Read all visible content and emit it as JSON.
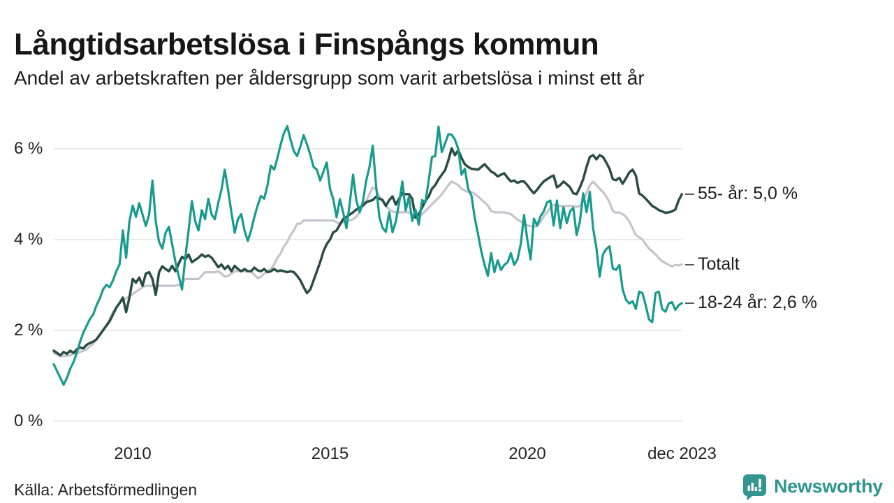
{
  "header": {
    "title": "Långtidsarbetslösa i Finspångs kommun",
    "subtitle": "Andel av arbetskraften per åldersgrupp som varit arbetslösa i minst ett år"
  },
  "chart_data": {
    "type": "line",
    "title": "Långtidsarbetslösa i Finspångs kommun",
    "subtitle": "Andel av arbetskraften per åldersgrupp som varit arbetslösa i minst ett år",
    "x_unit": "month",
    "x_start_year": 2008.0,
    "x_months_step": 1,
    "xlim": [
      2008.0,
      2024.0
    ],
    "ylim": [
      0,
      6.8
    ],
    "grid": true,
    "legend_position": "right-end-labels",
    "y_axis_ticks": [
      {
        "v": 6,
        "label": "6 %"
      },
      {
        "v": 4,
        "label": "4 %"
      },
      {
        "v": 2,
        "label": "2 %"
      },
      {
        "v": 0,
        "label": "0 %"
      }
    ],
    "x_axis_ticks": [
      {
        "t": 2010.0,
        "label": "2010"
      },
      {
        "t": 2015.0,
        "label": "2015"
      },
      {
        "t": 2020.0,
        "label": "2020"
      },
      {
        "t": 2023.92,
        "label": "dec 2023"
      }
    ],
    "series": [
      {
        "name": "55- år",
        "end_label": "55- år: 5,0 %",
        "last_value_label": "5,0 %",
        "color": "#2b4c44",
        "width": 3.5,
        "z": 2,
        "values": [
          1.55,
          1.5,
          1.45,
          1.52,
          1.48,
          1.55,
          1.5,
          1.58,
          1.62,
          1.6,
          1.68,
          1.72,
          1.75,
          1.8,
          1.9,
          2.0,
          2.1,
          2.2,
          2.35,
          2.5,
          2.6,
          2.72,
          2.4,
          2.72,
          3.13,
          3.05,
          3.16,
          2.98,
          3.25,
          3.28,
          3.13,
          2.78,
          3.28,
          3.41,
          3.35,
          3.3,
          3.42,
          3.3,
          3.47,
          3.62,
          3.56,
          3.67,
          3.5,
          3.55,
          3.6,
          3.67,
          3.62,
          3.65,
          3.6,
          3.5,
          3.39,
          3.45,
          3.35,
          3.42,
          3.3,
          3.42,
          3.35,
          3.3,
          3.35,
          3.3,
          3.3,
          3.38,
          3.32,
          3.3,
          3.35,
          3.28,
          3.3,
          3.35,
          3.3,
          3.32,
          3.3,
          3.28,
          3.3,
          3.28,
          3.2,
          3.1,
          2.95,
          2.82,
          2.9,
          3.1,
          3.3,
          3.5,
          3.74,
          3.9,
          4.0,
          4.16,
          4.2,
          4.33,
          4.45,
          4.5,
          4.55,
          4.6,
          4.66,
          4.7,
          4.75,
          4.82,
          4.85,
          4.87,
          4.94,
          4.9,
          4.87,
          4.74,
          4.87,
          4.95,
          4.77,
          4.9,
          5.02,
          5.0,
          5.0,
          4.9,
          4.48,
          4.56,
          4.7,
          4.85,
          4.95,
          5.12,
          5.2,
          5.33,
          5.43,
          5.53,
          5.75,
          6.01,
          5.86,
          5.97,
          5.8,
          5.66,
          5.6,
          5.56,
          5.55,
          5.54,
          5.6,
          5.66,
          5.58,
          5.5,
          5.46,
          5.39,
          5.43,
          5.46,
          5.36,
          5.28,
          5.3,
          5.25,
          5.28,
          5.28,
          5.2,
          5.1,
          5.02,
          5.1,
          5.2,
          5.28,
          5.33,
          5.38,
          5.41,
          5.15,
          5.2,
          5.28,
          5.22,
          5.15,
          5.02,
          5.0,
          5.15,
          5.33,
          5.6,
          5.82,
          5.86,
          5.77,
          5.86,
          5.82,
          5.7,
          5.56,
          5.33,
          5.31,
          5.36,
          5.23,
          5.35,
          5.48,
          5.54,
          5.41,
          5.02,
          4.97,
          4.9,
          4.82,
          4.74,
          4.7,
          4.65,
          4.62,
          4.59,
          4.6,
          4.62,
          4.66,
          4.86,
          5.0
        ]
      },
      {
        "name": "Totalt",
        "end_label": "Totalt",
        "last_value_label": "",
        "color": "#c5c3ce",
        "width": 3.2,
        "z": 1,
        "values": [
          1.5,
          1.46,
          1.42,
          1.44,
          1.43,
          1.45,
          1.48,
          1.5,
          1.52,
          1.55,
          1.58,
          1.65,
          1.7,
          1.8,
          1.9,
          2.0,
          2.1,
          2.25,
          2.4,
          2.5,
          2.6,
          2.65,
          2.7,
          2.75,
          2.8,
          2.85,
          2.9,
          2.95,
          2.98,
          2.98,
          2.98,
          2.98,
          2.98,
          2.98,
          2.98,
          2.98,
          2.98,
          2.98,
          3.0,
          3.05,
          3.13,
          3.13,
          3.13,
          3.13,
          3.13,
          3.2,
          3.28,
          3.28,
          3.28,
          3.28,
          3.3,
          3.25,
          3.18,
          3.2,
          3.25,
          3.3,
          3.3,
          3.3,
          3.3,
          3.3,
          3.3,
          3.22,
          3.15,
          3.18,
          3.25,
          3.3,
          3.35,
          3.45,
          3.6,
          3.7,
          3.85,
          3.95,
          4.1,
          4.2,
          4.35,
          4.35,
          4.42,
          4.42,
          4.42,
          4.42,
          4.42,
          4.42,
          4.42,
          4.42,
          4.42,
          4.42,
          4.38,
          4.35,
          4.38,
          4.42,
          4.42,
          4.45,
          4.5,
          4.6,
          4.75,
          4.85,
          5.0,
          5.15,
          5.1,
          4.95,
          4.85,
          4.75,
          4.66,
          4.62,
          4.6,
          4.6,
          4.6,
          4.6,
          4.6,
          4.55,
          4.48,
          4.5,
          4.56,
          4.63,
          4.7,
          4.78,
          4.85,
          4.92,
          5.0,
          5.1,
          5.2,
          5.28,
          5.24,
          5.2,
          5.12,
          5.08,
          5.05,
          5.05,
          5.0,
          4.95,
          4.88,
          4.82,
          4.75,
          4.63,
          4.6,
          4.6,
          4.6,
          4.6,
          4.58,
          4.56,
          4.5,
          4.44,
          4.4,
          4.35,
          4.31,
          4.3,
          4.28,
          4.3,
          4.38,
          4.51,
          4.6,
          4.7,
          4.77,
          4.74,
          4.74,
          4.74,
          4.74,
          4.74,
          4.74,
          4.72,
          4.74,
          4.85,
          5.02,
          5.2,
          5.28,
          5.2,
          5.12,
          5.05,
          4.95,
          4.82,
          4.63,
          4.59,
          4.6,
          4.56,
          4.5,
          4.4,
          4.25,
          4.1,
          4.05,
          4.0,
          3.9,
          3.8,
          3.74,
          3.67,
          3.59,
          3.52,
          3.48,
          3.44,
          3.41,
          3.44,
          3.43,
          3.45
        ]
      },
      {
        "name": "18-24 år",
        "end_label": "18-24 år: 2,6 %",
        "last_value_label": "2,6 %",
        "color": "#169b8c",
        "width": 3.2,
        "z": 3,
        "values": [
          1.25,
          1.1,
          0.95,
          0.8,
          0.95,
          1.15,
          1.3,
          1.5,
          1.75,
          1.95,
          2.1,
          2.25,
          2.35,
          2.55,
          2.7,
          2.9,
          3.0,
          2.95,
          3.1,
          3.3,
          3.45,
          4.2,
          3.6,
          4.4,
          4.75,
          4.5,
          4.8,
          4.55,
          4.3,
          4.55,
          5.3,
          4.4,
          3.95,
          3.8,
          4.15,
          4.28,
          3.9,
          3.5,
          3.2,
          2.9,
          3.6,
          4.2,
          4.85,
          4.4,
          4.2,
          4.65,
          4.45,
          4.9,
          4.55,
          4.45,
          4.8,
          5.1,
          5.54,
          5.1,
          4.6,
          4.15,
          4.45,
          4.56,
          4.2,
          3.97,
          4.2,
          4.5,
          4.75,
          4.96,
          4.9,
          5.2,
          5.63,
          5.54,
          5.8,
          6.1,
          6.35,
          6.5,
          6.2,
          5.95,
          5.84,
          6.05,
          6.3,
          6.1,
          5.87,
          5.6,
          5.54,
          5.3,
          5.5,
          5.7,
          5.12,
          4.89,
          4.49,
          4.89,
          4.6,
          4.25,
          4.8,
          5.43,
          4.86,
          4.6,
          4.84,
          5.3,
          5.6,
          6.07,
          5.2,
          4.5,
          4.25,
          4.17,
          4.6,
          4.16,
          4.4,
          4.8,
          5.28,
          4.64,
          4.94,
          4.41,
          4.66,
          4.33,
          4.87,
          4.82,
          5.3,
          5.82,
          5.84,
          6.49,
          5.93,
          6.12,
          6.32,
          6.31,
          6.2,
          6.0,
          5.43,
          5.56,
          5.12,
          4.97,
          4.48,
          4.12,
          3.74,
          3.44,
          3.2,
          3.7,
          3.28,
          3.54,
          3.33,
          3.44,
          3.5,
          3.7,
          3.44,
          3.56,
          3.9,
          4.54,
          4.0,
          3.56,
          4.46,
          4.31,
          4.51,
          4.62,
          4.82,
          4.86,
          4.31,
          4.86,
          4.25,
          4.71,
          4.36,
          4.62,
          4.7,
          4.1,
          4.4,
          5.02,
          4.6,
          5.05,
          4.25,
          3.82,
          3.18,
          3.67,
          3.79,
          3.85,
          3.36,
          3.33,
          3.44,
          2.9,
          2.67,
          2.59,
          2.64,
          2.47,
          2.85,
          2.82,
          2.55,
          2.24,
          2.18,
          2.82,
          2.85,
          2.47,
          2.41,
          2.59,
          2.62,
          2.45,
          2.55,
          2.6
        ]
      }
    ]
  },
  "footer": {
    "source": "Källa: Arbetsförmedlingen",
    "logo_text": "Newsworthy"
  },
  "colors": {
    "teal_line": "#169b8c",
    "dark_green_line": "#2b4c44",
    "total_gray_line": "#c5c3ce",
    "grid": "#e4e4e6",
    "text": "#1b1b1b",
    "logo_teal": "#339690"
  }
}
